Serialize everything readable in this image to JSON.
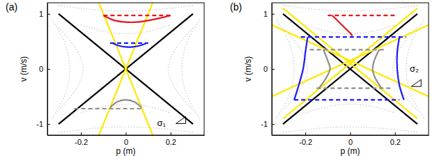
{
  "chart_data": [
    {
      "type": "line",
      "title": "(a)",
      "x_label": "p (m)",
      "y_label": "v (m/s)",
      "annotation": "σ₁",
      "xlim": [
        -0.35,
        0.35
      ],
      "ylim": [
        -1.2,
        1.2
      ],
      "xticks": [
        -0.2,
        0,
        0.2
      ],
      "yticks": [
        -1,
        0,
        1
      ],
      "series": [
        {
          "color": "#c8c8c8",
          "line_style": "dotted",
          "x": [
            -0.33,
            -0.27,
            -0.25,
            -0.27,
            -0.33
          ],
          "values": [
            0.9,
            0.45,
            0,
            -0.45,
            -0.9
          ]
        },
        {
          "color": "#c8c8c8",
          "line_style": "dotted",
          "x": [
            -0.3,
            -0.22,
            -0.19,
            -0.22,
            -0.3
          ],
          "values": [
            0.75,
            0.35,
            0,
            -0.35,
            -0.75
          ]
        },
        {
          "color": "#c8c8c8",
          "line_style": "dotted",
          "x": [
            0.33,
            0.27,
            0.25,
            0.27,
            0.33
          ],
          "values": [
            0.9,
            0.45,
            0,
            -0.45,
            -0.9
          ]
        },
        {
          "color": "#c8c8c8",
          "line_style": "dotted",
          "x": [
            0.3,
            0.22,
            0.19,
            0.22,
            0.3
          ],
          "values": [
            0.75,
            0.35,
            0,
            -0.35,
            -0.75
          ]
        },
        {
          "color": "#c8c8c8",
          "line_style": "dotted",
          "x": [
            -0.3,
            -0.15,
            0,
            0.15,
            0.3
          ],
          "values": [
            1.15,
            1.08,
            1.05,
            1.08,
            1.15
          ]
        },
        {
          "color": "#c8c8c8",
          "line_style": "dotted",
          "x": [
            -0.2,
            -0.1,
            0,
            0.1,
            0.2
          ],
          "values": [
            0.8,
            0.68,
            0.64,
            0.68,
            0.8
          ]
        },
        {
          "color": "#c8c8c8",
          "line_style": "dotted",
          "x": [
            -0.3,
            -0.15,
            0,
            0.15,
            0.3
          ],
          "values": [
            -1.15,
            -1.08,
            -1.05,
            -1.08,
            -1.15
          ]
        },
        {
          "color": "#c8c8c8",
          "line_style": "dotted",
          "x": [
            -0.2,
            -0.1,
            0,
            0.1,
            0.2
          ],
          "values": [
            -0.8,
            -0.68,
            -0.64,
            -0.68,
            -0.8
          ]
        },
        {
          "color": "#000000",
          "line_style": "solid",
          "x": [
            -0.3,
            0.3
          ],
          "values": [
            -1,
            1
          ]
        },
        {
          "color": "#000000",
          "line_style": "solid",
          "x": [
            -0.3,
            0.3
          ],
          "values": [
            1,
            -1
          ]
        },
        {
          "color": "#ffe800",
          "line_style": "solid",
          "x": [
            -0.12,
            0.12
          ],
          "values": [
            -1.2,
            1.2
          ]
        },
        {
          "color": "#ffe800",
          "line_style": "solid",
          "x": [
            -0.12,
            0.12
          ],
          "values": [
            1.2,
            -1.2
          ]
        },
        {
          "color": "#e8141c",
          "line_style": "dashed",
          "x": [
            -0.1,
            0.2
          ],
          "values": [
            0.97,
            0.97
          ]
        },
        {
          "color": "#e8141c",
          "line_style": "solid",
          "x": [
            -0.1,
            -0.05,
            0,
            0.05,
            0.1,
            0.15,
            0.2
          ],
          "values": [
            0.97,
            0.88,
            0.85,
            0.85,
            0.88,
            0.92,
            0.97
          ]
        },
        {
          "color": "#1a1aff",
          "line_style": "dashed",
          "x": [
            -0.07,
            0.1
          ],
          "values": [
            0.47,
            0.47
          ]
        },
        {
          "color": "#1a1aff",
          "line_style": "solid",
          "x": [
            -0.06,
            -0.03,
            0,
            0.03,
            0.06,
            0.09
          ],
          "values": [
            0.47,
            0.42,
            0.4,
            0.4,
            0.42,
            0.46
          ]
        },
        {
          "color": "#8c8c8c",
          "line_style": "dashed",
          "x": [
            -0.23,
            0.07
          ],
          "values": [
            -0.72,
            -0.72
          ]
        },
        {
          "color": "#8c8c8c",
          "line_style": "solid",
          "x": [
            -0.07,
            -0.04,
            0,
            0.04,
            0.07
          ],
          "values": [
            -0.7,
            -0.6,
            -0.56,
            -0.6,
            -0.7
          ]
        }
      ]
    },
    {
      "type": "line",
      "title": "(b)",
      "x_label": "p (m)",
      "y_label": "v (m/s)",
      "annotation": "σ₂",
      "xlim": [
        -0.35,
        0.35
      ],
      "ylim": [
        -1.2,
        1.2
      ],
      "xticks": [
        -0.2,
        0,
        0.2
      ],
      "yticks": [
        -1,
        0,
        1
      ],
      "series": [
        {
          "color": "#c8c8c8",
          "line_style": "dotted",
          "x": [
            -0.33,
            -0.27,
            -0.25,
            -0.27,
            -0.33
          ],
          "values": [
            0.9,
            0.45,
            0,
            -0.45,
            -0.9
          ]
        },
        {
          "color": "#c8c8c8",
          "line_style": "dotted",
          "x": [
            -0.3,
            -0.22,
            -0.19,
            -0.22,
            -0.3
          ],
          "values": [
            0.75,
            0.35,
            0,
            -0.35,
            -0.75
          ]
        },
        {
          "color": "#c8c8c8",
          "line_style": "dotted",
          "x": [
            0.33,
            0.27,
            0.25,
            0.27,
            0.33
          ],
          "values": [
            0.9,
            0.45,
            0,
            -0.45,
            -0.9
          ]
        },
        {
          "color": "#c8c8c8",
          "line_style": "dotted",
          "x": [
            0.3,
            0.22,
            0.19,
            0.22,
            0.3
          ],
          "values": [
            0.75,
            0.35,
            0,
            -0.35,
            -0.75
          ]
        },
        {
          "color": "#c8c8c8",
          "line_style": "dotted",
          "x": [
            -0.3,
            -0.15,
            0,
            0.15,
            0.3
          ],
          "values": [
            1.15,
            1.08,
            1.05,
            1.08,
            1.15
          ]
        },
        {
          "color": "#c8c8c8",
          "line_style": "dotted",
          "x": [
            -0.2,
            -0.1,
            0,
            0.1,
            0.2
          ],
          "values": [
            0.8,
            0.68,
            0.64,
            0.68,
            0.8
          ]
        },
        {
          "color": "#c8c8c8",
          "line_style": "dotted",
          "x": [
            -0.3,
            -0.15,
            0,
            0.15,
            0.3
          ],
          "values": [
            -1.15,
            -1.08,
            -1.05,
            -1.08,
            -1.15
          ]
        },
        {
          "color": "#c8c8c8",
          "line_style": "dotted",
          "x": [
            -0.2,
            -0.1,
            0,
            0.1,
            0.2
          ],
          "values": [
            -0.8,
            -0.68,
            -0.64,
            -0.68,
            -0.8
          ]
        },
        {
          "color": "#000000",
          "line_style": "solid",
          "x": [
            -0.3,
            0.3
          ],
          "values": [
            -1,
            1
          ]
        },
        {
          "color": "#000000",
          "line_style": "solid",
          "x": [
            -0.3,
            0.3
          ],
          "values": [
            1,
            -1
          ]
        },
        {
          "color": "#ffe800",
          "line_style": "solid",
          "x": [
            -0.35,
            0.35
          ],
          "values": [
            0.8,
            -0.5
          ]
        },
        {
          "color": "#ffe800",
          "line_style": "solid",
          "x": [
            -0.35,
            0.35
          ],
          "values": [
            -0.5,
            0.8
          ]
        },
        {
          "color": "#ffe800",
          "line_style": "solid",
          "x": [
            -0.3,
            0.3
          ],
          "values": [
            1.1,
            -0.9
          ]
        },
        {
          "color": "#ffe800",
          "line_style": "solid",
          "x": [
            -0.3,
            0.3
          ],
          "values": [
            -0.9,
            1.1
          ]
        },
        {
          "color": "#e8141c",
          "line_style": "dashed",
          "x": [
            -0.1,
            0.2
          ],
          "values": [
            0.97,
            0.97
          ]
        },
        {
          "color": "#e8141c",
          "line_style": "solid",
          "x": [
            -0.08,
            -0.05,
            -0.02,
            0,
            0.01
          ],
          "values": [
            0.97,
            0.85,
            0.73,
            0.65,
            0.6
          ]
        },
        {
          "color": "#1a1aff",
          "line_style": "dashed",
          "x": [
            -0.22,
            0.25
          ],
          "values": [
            0.58,
            0.58
          ]
        },
        {
          "color": "#1a1aff",
          "line_style": "dashed",
          "x": [
            -0.25,
            0.22
          ],
          "values": [
            -0.56,
            -0.56
          ]
        },
        {
          "color": "#1a1aff",
          "line_style": "solid",
          "x": [
            -0.19,
            -0.2,
            -0.21,
            -0.23,
            -0.25
          ],
          "values": [
            0.58,
            0.3,
            0,
            -0.3,
            -0.56
          ]
        },
        {
          "color": "#1a1aff",
          "line_style": "solid",
          "x": [
            0.22,
            0.21,
            0.21,
            0.22,
            0.24
          ],
          "values": [
            0.58,
            0.3,
            0,
            -0.3,
            -0.56
          ]
        },
        {
          "color": "#8c8c8c",
          "line_style": "dashed",
          "x": [
            -0.18,
            0.15
          ],
          "values": [
            0.35,
            0.35
          ]
        },
        {
          "color": "#8c8c8c",
          "line_style": "dashed",
          "x": [
            -0.15,
            0.18
          ],
          "values": [
            -0.35,
            -0.35
          ]
        },
        {
          "color": "#8c8c8c",
          "line_style": "solid",
          "x": [
            -0.12,
            -0.1,
            -0.09,
            -0.11,
            -0.14
          ],
          "values": [
            0.35,
            0.15,
            0,
            -0.18,
            -0.35
          ]
        },
        {
          "color": "#8c8c8c",
          "line_style": "solid",
          "x": [
            0.13,
            0.11,
            0.1,
            0.11,
            0.14
          ],
          "values": [
            0.35,
            0.18,
            0,
            -0.15,
            -0.35
          ]
        }
      ]
    }
  ]
}
